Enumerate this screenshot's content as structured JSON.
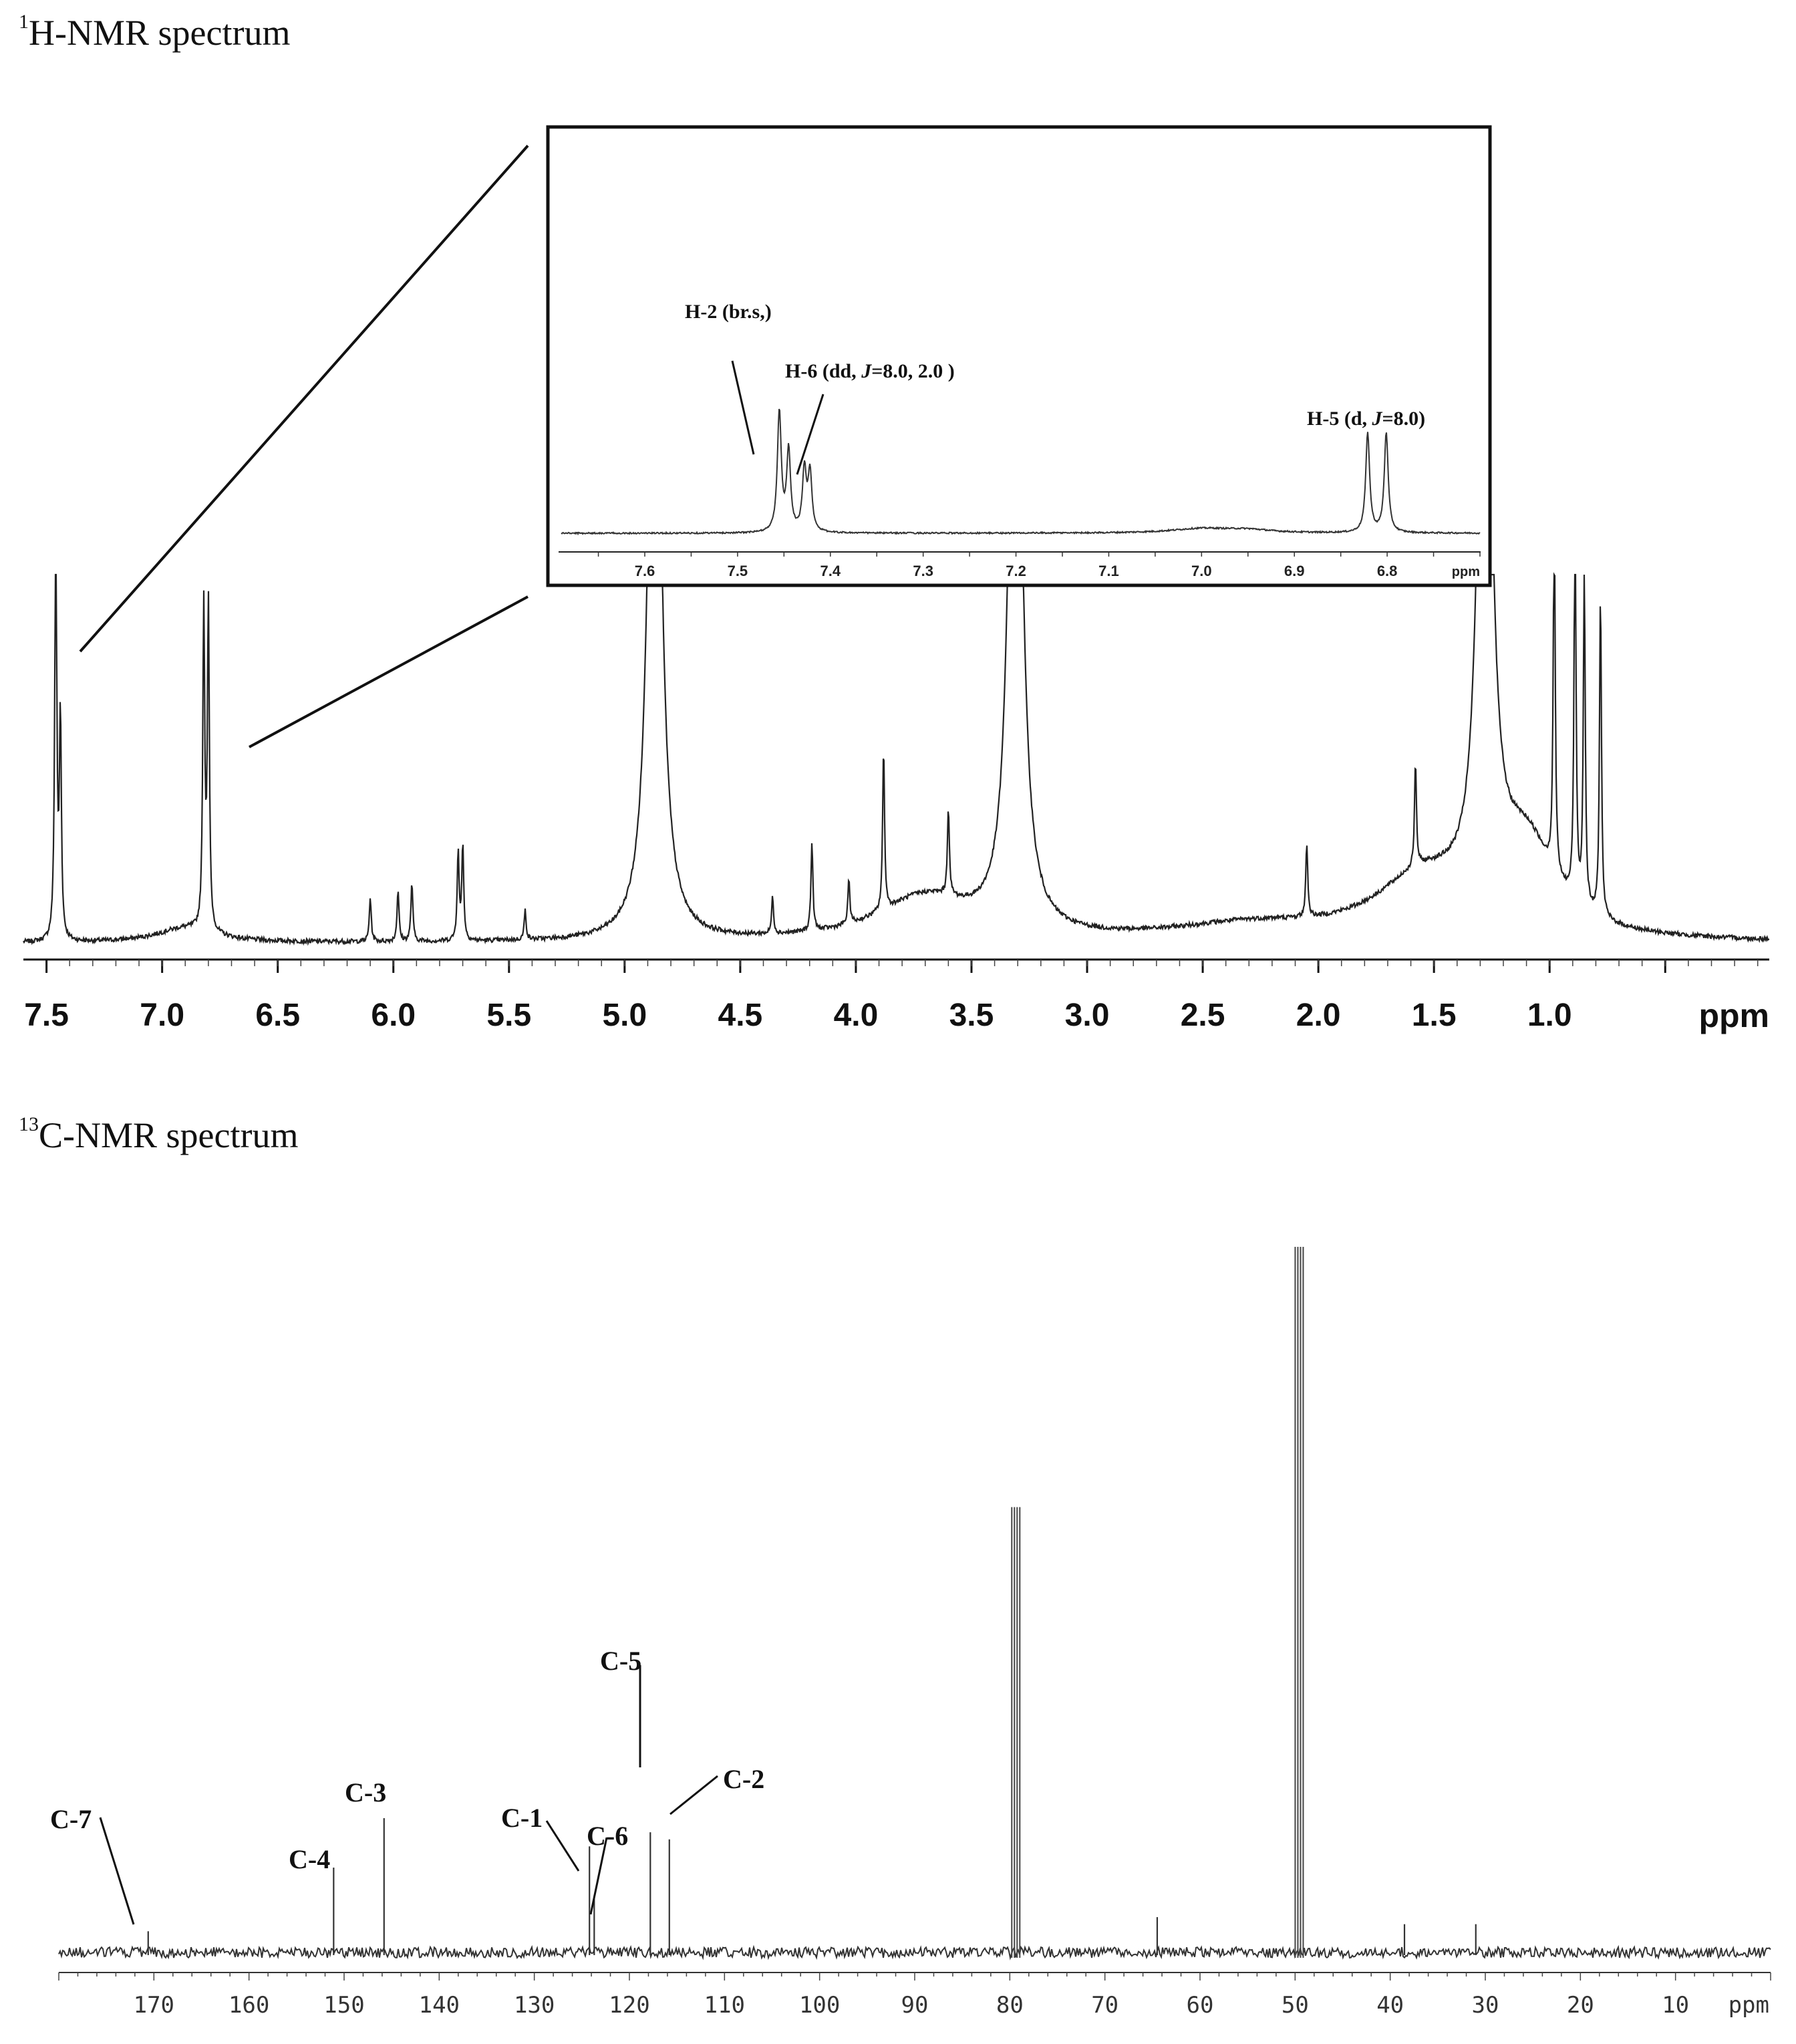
{
  "panels": {
    "h": {
      "title_sup": "1",
      "title_text": "H-NMR spectrum",
      "unit": "ppm",
      "inset_unit": "ppm",
      "inset_annotations": [
        {
          "id": "h2",
          "text": "H-2 (br.s,)"
        },
        {
          "id": "h6",
          "text": "H-6 (dd, J=8.0, 2.0 )"
        },
        {
          "id": "h5",
          "text": "H-5 (d, J=8.0)"
        }
      ]
    },
    "c": {
      "title_sup": "13",
      "title_text": "C-NMR spectrum",
      "unit": "ppm"
    }
  },
  "chart_data": [
    {
      "type": "line",
      "title": "1H-NMR spectrum",
      "xlabel": "ppm",
      "x_reversed": true,
      "xlim": [
        7.6,
        0.05
      ],
      "xticks": [
        7.5,
        7.0,
        6.5,
        6.0,
        5.5,
        5.0,
        4.5,
        4.0,
        3.5,
        3.0,
        2.5,
        2.0,
        1.5,
        1.0
      ],
      "xtick_labels": [
        "7.5",
        "7.0",
        "6.5",
        "6.0",
        "5.5",
        "5.0",
        "4.5",
        "4.0",
        "3.5",
        "3.0",
        "2.5",
        "2.0",
        "1.5",
        "1.0"
      ],
      "peaks": [
        {
          "ppm": 7.46,
          "height": 0.6
        },
        {
          "ppm": 7.44,
          "height": 0.3
        },
        {
          "ppm": 6.82,
          "height": 0.44
        },
        {
          "ppm": 6.8,
          "height": 0.44
        },
        {
          "ppm": 6.1,
          "height": 0.06
        },
        {
          "ppm": 5.98,
          "height": 0.07
        },
        {
          "ppm": 5.92,
          "height": 0.08
        },
        {
          "ppm": 5.72,
          "height": 0.12
        },
        {
          "ppm": 5.7,
          "height": 0.13
        },
        {
          "ppm": 5.43,
          "height": 0.04
        },
        {
          "ppm": 4.87,
          "height": 1.1
        },
        {
          "ppm": 4.36,
          "height": 0.05
        },
        {
          "ppm": 4.19,
          "height": 0.12
        },
        {
          "ppm": 4.03,
          "height": 0.06
        },
        {
          "ppm": 3.88,
          "height": 0.22
        },
        {
          "ppm": 3.6,
          "height": 0.12
        },
        {
          "ppm": 3.31,
          "height": 1.1
        },
        {
          "ppm": 2.05,
          "height": 0.1
        },
        {
          "ppm": 1.58,
          "height": 0.14
        },
        {
          "ppm": 1.28,
          "height": 1.1
        },
        {
          "ppm": 0.98,
          "height": 0.5
        },
        {
          "ppm": 0.89,
          "height": 0.55
        },
        {
          "ppm": 0.85,
          "height": 0.45
        },
        {
          "ppm": 0.78,
          "height": 0.44
        }
      ],
      "inset": {
        "xlim": [
          7.69,
          6.7
        ],
        "xticks": [
          7.6,
          7.5,
          7.4,
          7.3,
          7.2,
          7.1,
          7.0,
          6.9,
          6.8
        ],
        "xtick_labels": [
          "7.6",
          "7.5",
          "7.4",
          "7.3",
          "7.2",
          "7.1",
          "7.0",
          "6.9",
          "6.8"
        ],
        "xlabel": "ppm",
        "peaks": [
          {
            "ppm": 7.455,
            "height": 0.82
          },
          {
            "ppm": 7.445,
            "height": 0.55
          },
          {
            "ppm": 7.428,
            "height": 0.42
          },
          {
            "ppm": 7.422,
            "height": 0.4
          },
          {
            "ppm": 6.821,
            "height": 0.68
          },
          {
            "ppm": 6.801,
            "height": 0.68
          }
        ],
        "annotations": [
          {
            "text": "H-2 (br.s,)",
            "ppm": 7.455
          },
          {
            "text": "H-6 (dd, J=8.0, 2.0 )",
            "ppm": 7.425
          },
          {
            "text": "H-5 (d, J=8.0)",
            "ppm": 6.81
          }
        ]
      }
    },
    {
      "type": "line",
      "title": "13C-NMR spectrum",
      "xlabel": "ppm",
      "x_reversed": true,
      "xlim": [
        180,
        0
      ],
      "xticks": [
        170,
        160,
        150,
        140,
        130,
        120,
        110,
        100,
        90,
        80,
        70,
        60,
        50,
        40,
        30,
        20,
        10
      ],
      "xtick_labels": [
        "170",
        "160",
        "150",
        "140",
        "130",
        "120",
        "110",
        "100",
        "90",
        "80",
        "70",
        "60",
        "50",
        "40",
        "30",
        "20",
        "10"
      ],
      "peaks": [
        {
          "ppm": 170.6,
          "height": 0.03,
          "label": "C-7"
        },
        {
          "ppm": 151.1,
          "height": 0.12,
          "label": "C-4"
        },
        {
          "ppm": 145.8,
          "height": 0.19,
          "label": "C-3"
        },
        {
          "ppm": 124.2,
          "height": 0.15,
          "label": "C-1"
        },
        {
          "ppm": 123.7,
          "height": 0.08,
          "label": "C-6"
        },
        {
          "ppm": 117.8,
          "height": 0.17,
          "label": "C-5"
        },
        {
          "ppm": 115.8,
          "height": 0.16,
          "label": "C-2"
        },
        {
          "ppm": 79.3,
          "height": 0.63
        },
        {
          "ppm": 49.5,
          "height": 1.0
        },
        {
          "ppm": 64.5,
          "height": 0.05
        },
        {
          "ppm": 38.5,
          "height": 0.04
        },
        {
          "ppm": 31.0,
          "height": 0.04
        }
      ],
      "annotations": [
        {
          "text": "C-7",
          "ppm": 170.6
        },
        {
          "text": "C-4",
          "ppm": 151.1
        },
        {
          "text": "C-3",
          "ppm": 145.8
        },
        {
          "text": "C-1",
          "ppm": 124.2
        },
        {
          "text": "C-6",
          "ppm": 123.7
        },
        {
          "text": "C-5",
          "ppm": 117.8
        },
        {
          "text": "C-2",
          "ppm": 115.8
        }
      ]
    }
  ]
}
